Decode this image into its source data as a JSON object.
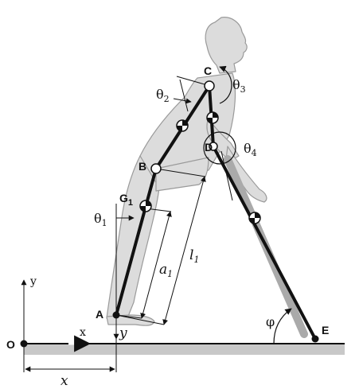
{
  "points": {
    "o": "O",
    "a": "A",
    "b": "B",
    "c": "C",
    "d": "D",
    "e": "E",
    "g": "G"
  },
  "angles": {
    "theta": "θ",
    "phi": "φ",
    "sub1": "1",
    "sub2": "2",
    "sub3": "3",
    "sub4": "4"
  },
  "dimensions": {
    "a": "a",
    "l": "l",
    "sub1": "1",
    "x": "x",
    "y": "y"
  },
  "axes": {
    "x": "x",
    "y": "y"
  },
  "colors": {
    "body": "#d9d9d9",
    "outline": "#9a9a9a",
    "ground": "#c8c8c8",
    "link": "#111111"
  }
}
